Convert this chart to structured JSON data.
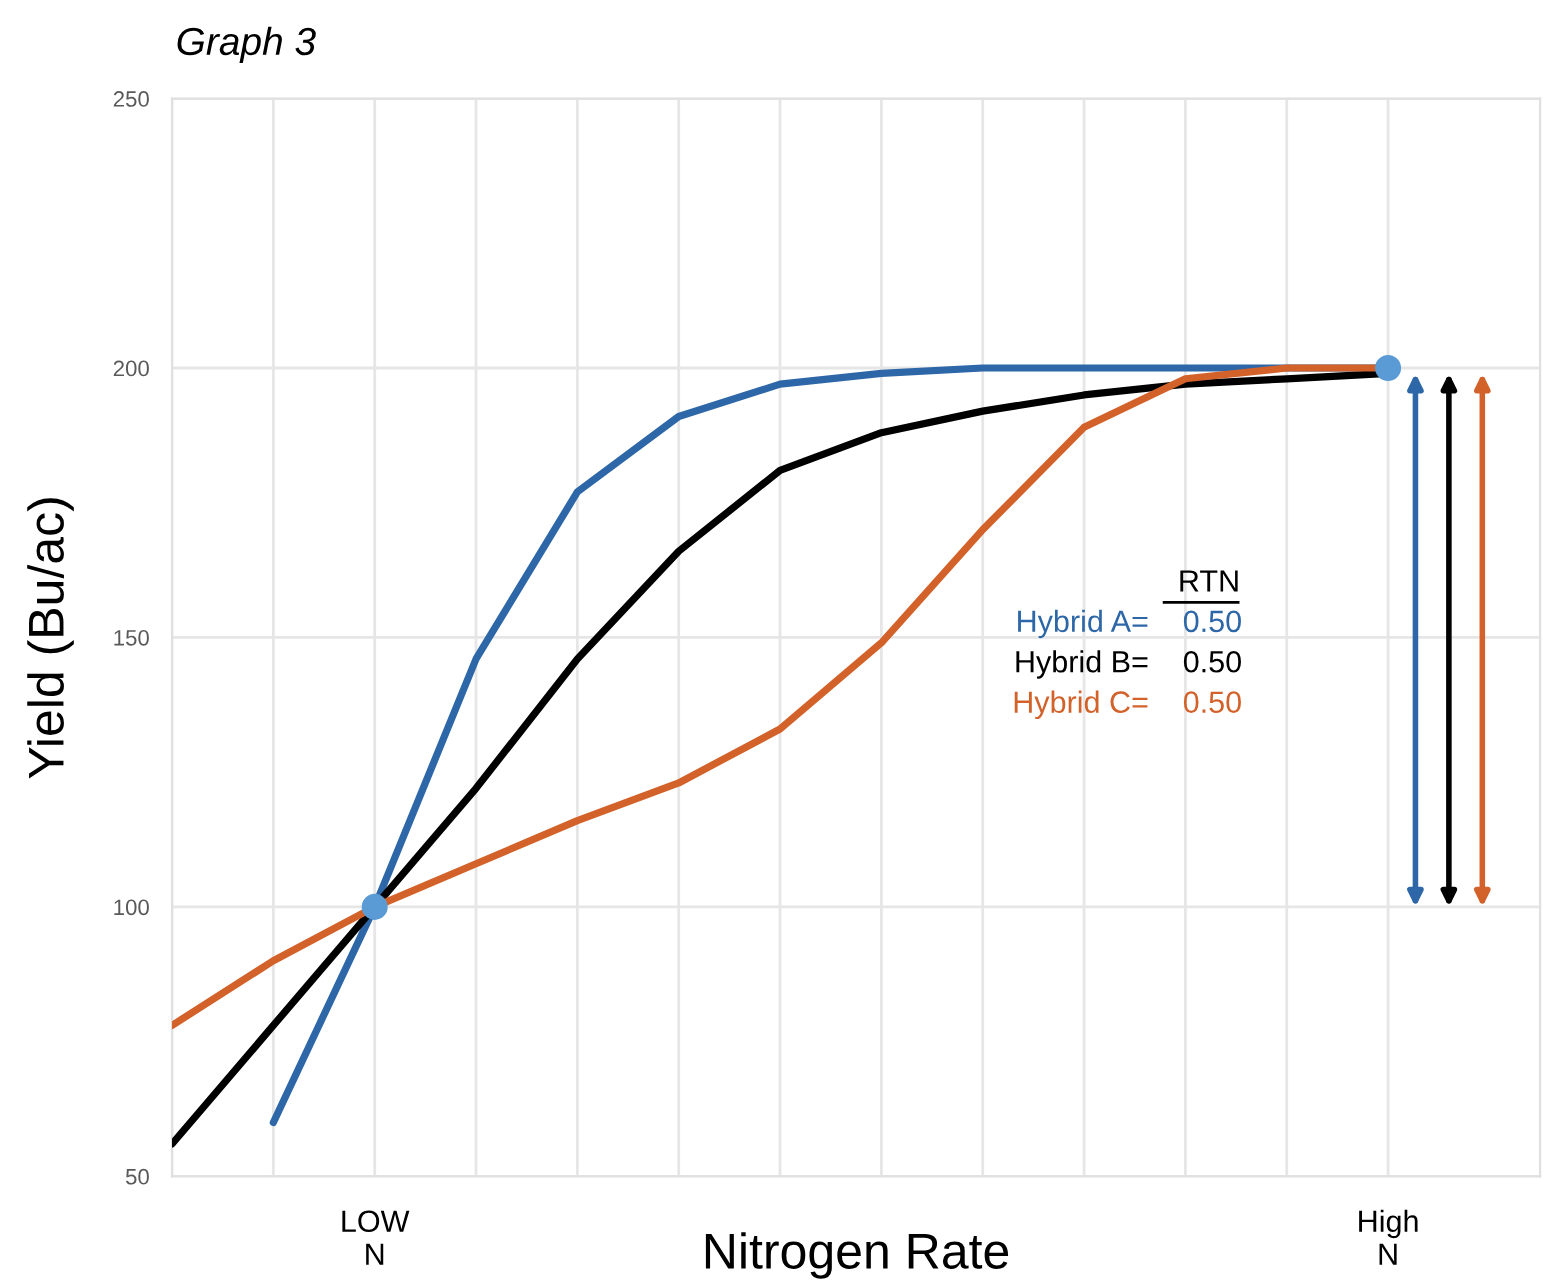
{
  "chart_data": {
    "type": "line",
    "title": "Graph 3",
    "xlabel": "Nitrogen Rate",
    "ylabel": "Yield (Bu/ac)",
    "categories": [
      null,
      null,
      "LOW\nN",
      null,
      null,
      null,
      null,
      null,
      null,
      null,
      null,
      null,
      "High\nN"
    ],
    "ylim": [
      50,
      250
    ],
    "yticks": [
      50,
      100,
      150,
      200,
      250
    ],
    "grid": true,
    "legend": false,
    "marker": "none",
    "line_style": "solid",
    "series": [
      {
        "name": "Hybrid A=",
        "color": "#2e67a8",
        "values": [
          null,
          60,
          100,
          146,
          177,
          191,
          197,
          199,
          200,
          200,
          200,
          200,
          200
        ]
      },
      {
        "name": "Hybrid B=",
        "color": "#000000",
        "values": [
          56,
          78,
          100,
          122,
          146,
          166,
          181,
          188,
          192,
          195,
          197,
          198,
          199
        ]
      },
      {
        "name": "Hybrid C=",
        "color": "#d2622a",
        "values": [
          78,
          90,
          100,
          108,
          116,
          123,
          133,
          149,
          170,
          189,
          198,
          200,
          200
        ]
      },
      {
        "type": "scatter",
        "color": "#5b9bd5",
        "marker": "circle",
        "values": [
          null,
          null,
          100,
          null,
          null,
          null,
          null,
          null,
          null,
          null,
          null,
          null,
          200
        ]
      }
    ],
    "annotations": [
      "RTN",
      "0.50",
      "0.50",
      "0.50"
    ]
  }
}
